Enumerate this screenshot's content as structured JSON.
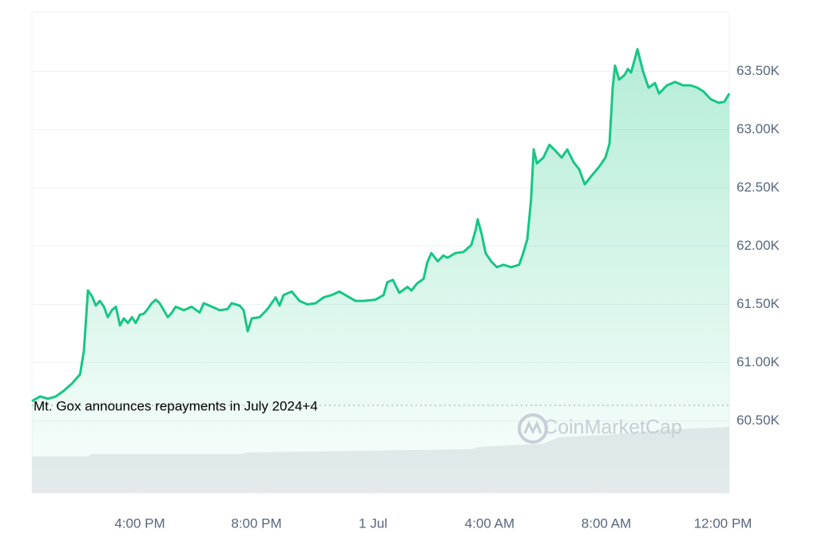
{
  "chart_data": {
    "type": "area",
    "color": "#16c784",
    "grid": true,
    "annotation": "Mt. Gox announces repayments in July 2024+4",
    "watermark": "CoinMarketCap",
    "xlim": [
      12.3,
      36.22
    ],
    "ylim": [
      59880,
      64010
    ],
    "xticks": [
      {
        "value": 16,
        "label": "4:00 PM"
      },
      {
        "value": 20,
        "label": "8:00 PM"
      },
      {
        "value": 24,
        "label": "1 Jul"
      },
      {
        "value": 28,
        "label": "4:00 AM"
      },
      {
        "value": 32,
        "label": "8:00 AM"
      },
      {
        "value": 36,
        "label": "12:00 PM"
      }
    ],
    "yticks": [
      {
        "value": 60500,
        "label": "60.50K"
      },
      {
        "value": 61000,
        "label": "61.00K"
      },
      {
        "value": 61500,
        "label": "61.50K"
      },
      {
        "value": 62000,
        "label": "62.00K"
      },
      {
        "value": 62500,
        "label": "62.50K"
      },
      {
        "value": 63000,
        "label": "63.00K"
      },
      {
        "value": 63500,
        "label": "63.50K"
      }
    ],
    "x": [
      12.3,
      12.58,
      12.85,
      13.12,
      13.4,
      13.67,
      13.95,
      14.08,
      14.22,
      14.36,
      14.49,
      14.63,
      14.77,
      14.9,
      15.04,
      15.18,
      15.32,
      15.45,
      15.59,
      15.73,
      15.86,
      16.0,
      16.14,
      16.27,
      16.41,
      16.55,
      16.68,
      16.82,
      16.96,
      17.1,
      17.23,
      17.51,
      17.78,
      18.05,
      18.19,
      18.47,
      18.74,
      19.01,
      19.15,
      19.42,
      19.56,
      19.7,
      19.84,
      20.11,
      20.38,
      20.66,
      20.79,
      20.93,
      21.21,
      21.48,
      21.75,
      22.03,
      22.3,
      22.58,
      22.85,
      23.12,
      23.4,
      23.67,
      24.08,
      24.36,
      24.49,
      24.68,
      24.9,
      25.18,
      25.32,
      25.51,
      25.73,
      25.86,
      26.0,
      26.22,
      26.41,
      26.55,
      26.82,
      27.1,
      27.37,
      27.51,
      27.59,
      27.73,
      27.86,
      28.05,
      28.25,
      28.47,
      28.74,
      29.01,
      29.15,
      29.29,
      29.42,
      29.51,
      29.62,
      29.84,
      30.05,
      30.25,
      30.47,
      30.66,
      30.88,
      31.07,
      31.26,
      31.48,
      31.75,
      31.97,
      32.11,
      32.22,
      32.3,
      32.44,
      32.63,
      32.74,
      32.85,
      33.07,
      33.26,
      33.45,
      33.67,
      33.81,
      34.08,
      34.36,
      34.63,
      34.9,
      35.12,
      35.32,
      35.59,
      35.86,
      36.05,
      36.22
    ],
    "values": [
      60670,
      60710,
      60690,
      60710,
      60760,
      60820,
      60900,
      61100,
      61620,
      61570,
      61490,
      61530,
      61480,
      61390,
      61450,
      61480,
      61320,
      61380,
      61340,
      61390,
      61340,
      61410,
      61420,
      61460,
      61510,
      61540,
      61510,
      61450,
      61390,
      61430,
      61480,
      61450,
      61480,
      61430,
      61510,
      61480,
      61450,
      61460,
      61510,
      61490,
      61450,
      61270,
      61380,
      61390,
      61460,
      61560,
      61490,
      61580,
      61610,
      61530,
      61500,
      61510,
      61560,
      61580,
      61610,
      61570,
      61530,
      61530,
      61540,
      61580,
      61690,
      61710,
      61600,
      61650,
      61620,
      61680,
      61720,
      61860,
      61940,
      61870,
      61920,
      61900,
      61940,
      61950,
      62010,
      62130,
      62230,
      62100,
      61940,
      61870,
      61820,
      61840,
      61820,
      61840,
      61940,
      62060,
      62400,
      62830,
      62710,
      62760,
      62870,
      62820,
      62760,
      62830,
      62720,
      62660,
      62530,
      62600,
      62680,
      62760,
      62880,
      63360,
      63550,
      63430,
      63470,
      63520,
      63490,
      63690,
      63500,
      63360,
      63400,
      63310,
      63380,
      63410,
      63380,
      63380,
      63360,
      63330,
      63260,
      63230,
      63240,
      63310
    ]
  }
}
